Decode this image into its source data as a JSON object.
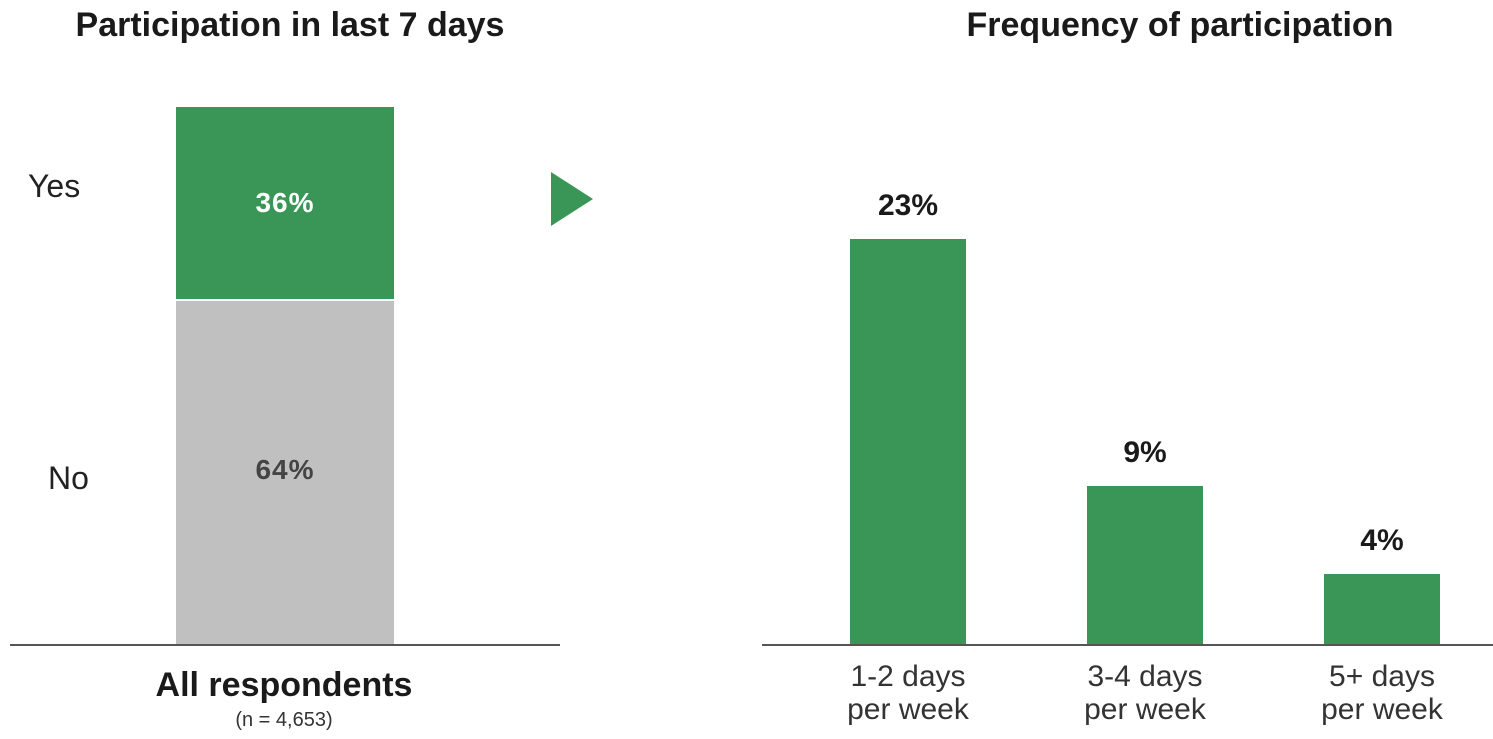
{
  "chart_data": [
    {
      "type": "bar",
      "stacked": true,
      "title": "Participation in last 7 days",
      "categories": [
        "All respondents"
      ],
      "category_note": "(n = 4,653)",
      "series": [
        {
          "name": "Yes",
          "values": [
            36
          ],
          "label": "36%",
          "color": "#3a9657"
        },
        {
          "name": "No",
          "values": [
            64
          ],
          "label": "64%",
          "color": "#c0c0c0"
        }
      ],
      "ylim": [
        0,
        100
      ],
      "grid": false,
      "legend": "none"
    },
    {
      "type": "bar",
      "title": "Frequency of participation",
      "categories": [
        [
          "1-2 days",
          "per week"
        ],
        [
          "3-4 days",
          "per week"
        ],
        [
          "5+ days",
          "per week"
        ]
      ],
      "values": [
        23,
        9,
        4
      ],
      "labels": [
        "23%",
        "9%",
        "4%"
      ],
      "color": "#3a9657",
      "grid": false,
      "legend": "none"
    }
  ],
  "arrow": {
    "icon": "triangle-right-icon",
    "color": "#3a9657"
  }
}
